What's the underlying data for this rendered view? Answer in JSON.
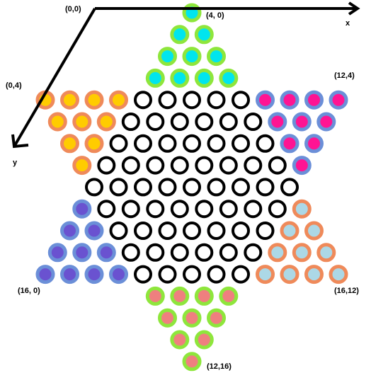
{
  "labels": {
    "origin": "(0,0)",
    "x_axis": "x",
    "y_axis": "y",
    "top_point": "(4, 0)",
    "left_top": "(0,4)",
    "right_top": "(12,4)",
    "left_bottom": "(16, 0)",
    "right_bottom": "(16,12)",
    "bottom_point": "(12,16)"
  },
  "colors": {
    "empty_ring": "#000000",
    "top_ring": "#8ee63c",
    "top_fill": "#00e5ee",
    "top_left_ring": "#ef8a5a",
    "top_left_fill": "#ffcc00",
    "top_right_ring": "#6b8fd8",
    "top_right_fill": "#ff1493",
    "bottom_left_ring": "#6b8fd8",
    "bottom_left_fill": "#6a52d0",
    "bottom_right_ring": "#ef8a5a",
    "bottom_right_fill": "#acd8e6",
    "bottom_ring": "#8ee63c",
    "bottom_fill": "#ef7f7f"
  },
  "board": {
    "rows": [
      {
        "start_col": 8,
        "cells": [
          "top"
        ]
      },
      {
        "start_col": 7,
        "cells": [
          "top",
          "top"
        ]
      },
      {
        "start_col": 6,
        "cells": [
          "top",
          "top",
          "top"
        ]
      },
      {
        "start_col": 5,
        "cells": [
          "top",
          "top",
          "top",
          "top"
        ]
      },
      {
        "start_col": -4,
        "cells": [
          "top_left",
          "top_left",
          "top_left",
          "top_left",
          "empty",
          "empty",
          "empty",
          "empty",
          "empty",
          "top_right",
          "top_right",
          "top_right",
          "top_right"
        ]
      },
      {
        "start_col": -3,
        "cells": [
          "top_left",
          "top_left",
          "top_left",
          "empty",
          "empty",
          "empty",
          "empty",
          "empty",
          "empty",
          "top_right",
          "top_right",
          "top_right"
        ]
      },
      {
        "start_col": -2,
        "cells": [
          "top_left",
          "top_left",
          "empty",
          "empty",
          "empty",
          "empty",
          "empty",
          "empty",
          "empty",
          "top_right",
          "top_right"
        ]
      },
      {
        "start_col": -1,
        "cells": [
          "top_left",
          "empty",
          "empty",
          "empty",
          "empty",
          "empty",
          "empty",
          "empty",
          "empty",
          "top_right"
        ]
      },
      {
        "start_col": 0,
        "cells": [
          "empty",
          "empty",
          "empty",
          "empty",
          "empty",
          "empty",
          "empty",
          "empty",
          "empty"
        ]
      },
      {
        "start_col": -1,
        "cells": [
          "bottom_left",
          "empty",
          "empty",
          "empty",
          "empty",
          "empty",
          "empty",
          "empty",
          "empty",
          "bottom_right"
        ]
      },
      {
        "start_col": -2,
        "cells": [
          "bottom_left",
          "bottom_left",
          "empty",
          "empty",
          "empty",
          "empty",
          "empty",
          "empty",
          "empty",
          "bottom_right",
          "bottom_right"
        ]
      },
      {
        "start_col": -3,
        "cells": [
          "bottom_left",
          "bottom_left",
          "bottom_left",
          "empty",
          "empty",
          "empty",
          "empty",
          "empty",
          "empty",
          "bottom_right",
          "bottom_right",
          "bottom_right"
        ]
      },
      {
        "start_col": -4,
        "cells": [
          "bottom_left",
          "bottom_left",
          "bottom_left",
          "bottom_left",
          "empty",
          "empty",
          "empty",
          "empty",
          "empty",
          "bottom_right",
          "bottom_right",
          "bottom_right",
          "bottom_right"
        ]
      },
      {
        "start_col": 5,
        "cells": [
          "bottom",
          "bottom",
          "bottom",
          "bottom"
        ]
      },
      {
        "start_col": 6,
        "cells": [
          "bottom",
          "bottom",
          "bottom"
        ]
      },
      {
        "start_col": 7,
        "cells": [
          "bottom",
          "bottom"
        ]
      },
      {
        "start_col": 8,
        "cells": [
          "bottom"
        ]
      }
    ]
  }
}
